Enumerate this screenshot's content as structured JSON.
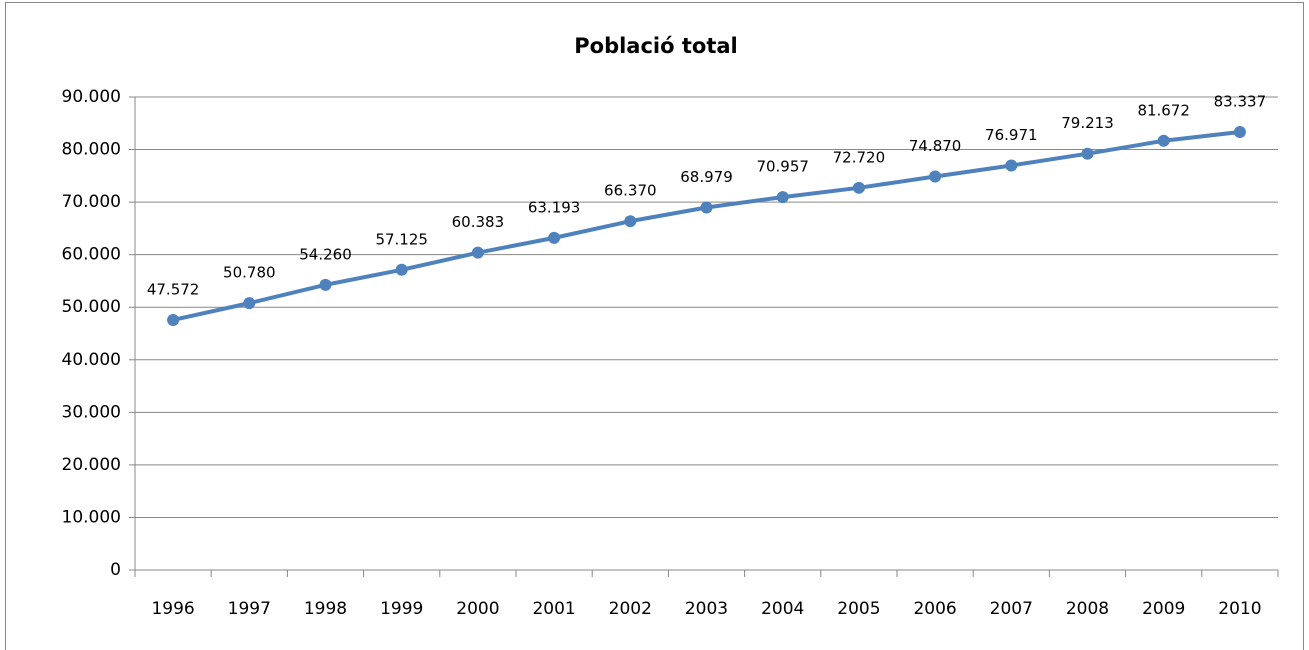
{
  "chart_data": {
    "type": "line",
    "title": "Població total",
    "categories": [
      "1996",
      "1997",
      "1998",
      "1999",
      "2000",
      "2001",
      "2002",
      "2003",
      "2004",
      "2005",
      "2006",
      "2007",
      "2008",
      "2009",
      "2010"
    ],
    "values": [
      47572,
      50780,
      54260,
      57125,
      60383,
      63193,
      66370,
      68979,
      70957,
      72720,
      74870,
      76971,
      79213,
      81672,
      83337
    ],
    "value_labels": [
      "47.572",
      "50.780",
      "54.260",
      "57.125",
      "60.383",
      "63.193",
      "66.370",
      "68.979",
      "70.957",
      "72.720",
      "74.870",
      "76.971",
      "79.213",
      "81.672",
      "83.337"
    ],
    "color": "#4f81bd",
    "ylim": [
      0,
      90000
    ],
    "yticks": [
      0,
      {
        "value": 10000,
        "label": "10.000"
      },
      {
        "value": 20000,
        "label": "20.000"
      },
      {
        "value": 30000,
        "label": "30.000"
      },
      {
        "value": 40000,
        "label": "40.000"
      },
      {
        "value": 50000,
        "label": "50.000"
      },
      {
        "value": 60000,
        "label": "60.000"
      },
      {
        "value": 70000,
        "label": "70.000"
      },
      {
        "value": 80000,
        "label": "80.000"
      },
      {
        "value": 90000,
        "label": "90.000"
      }
    ],
    "grid": true
  }
}
